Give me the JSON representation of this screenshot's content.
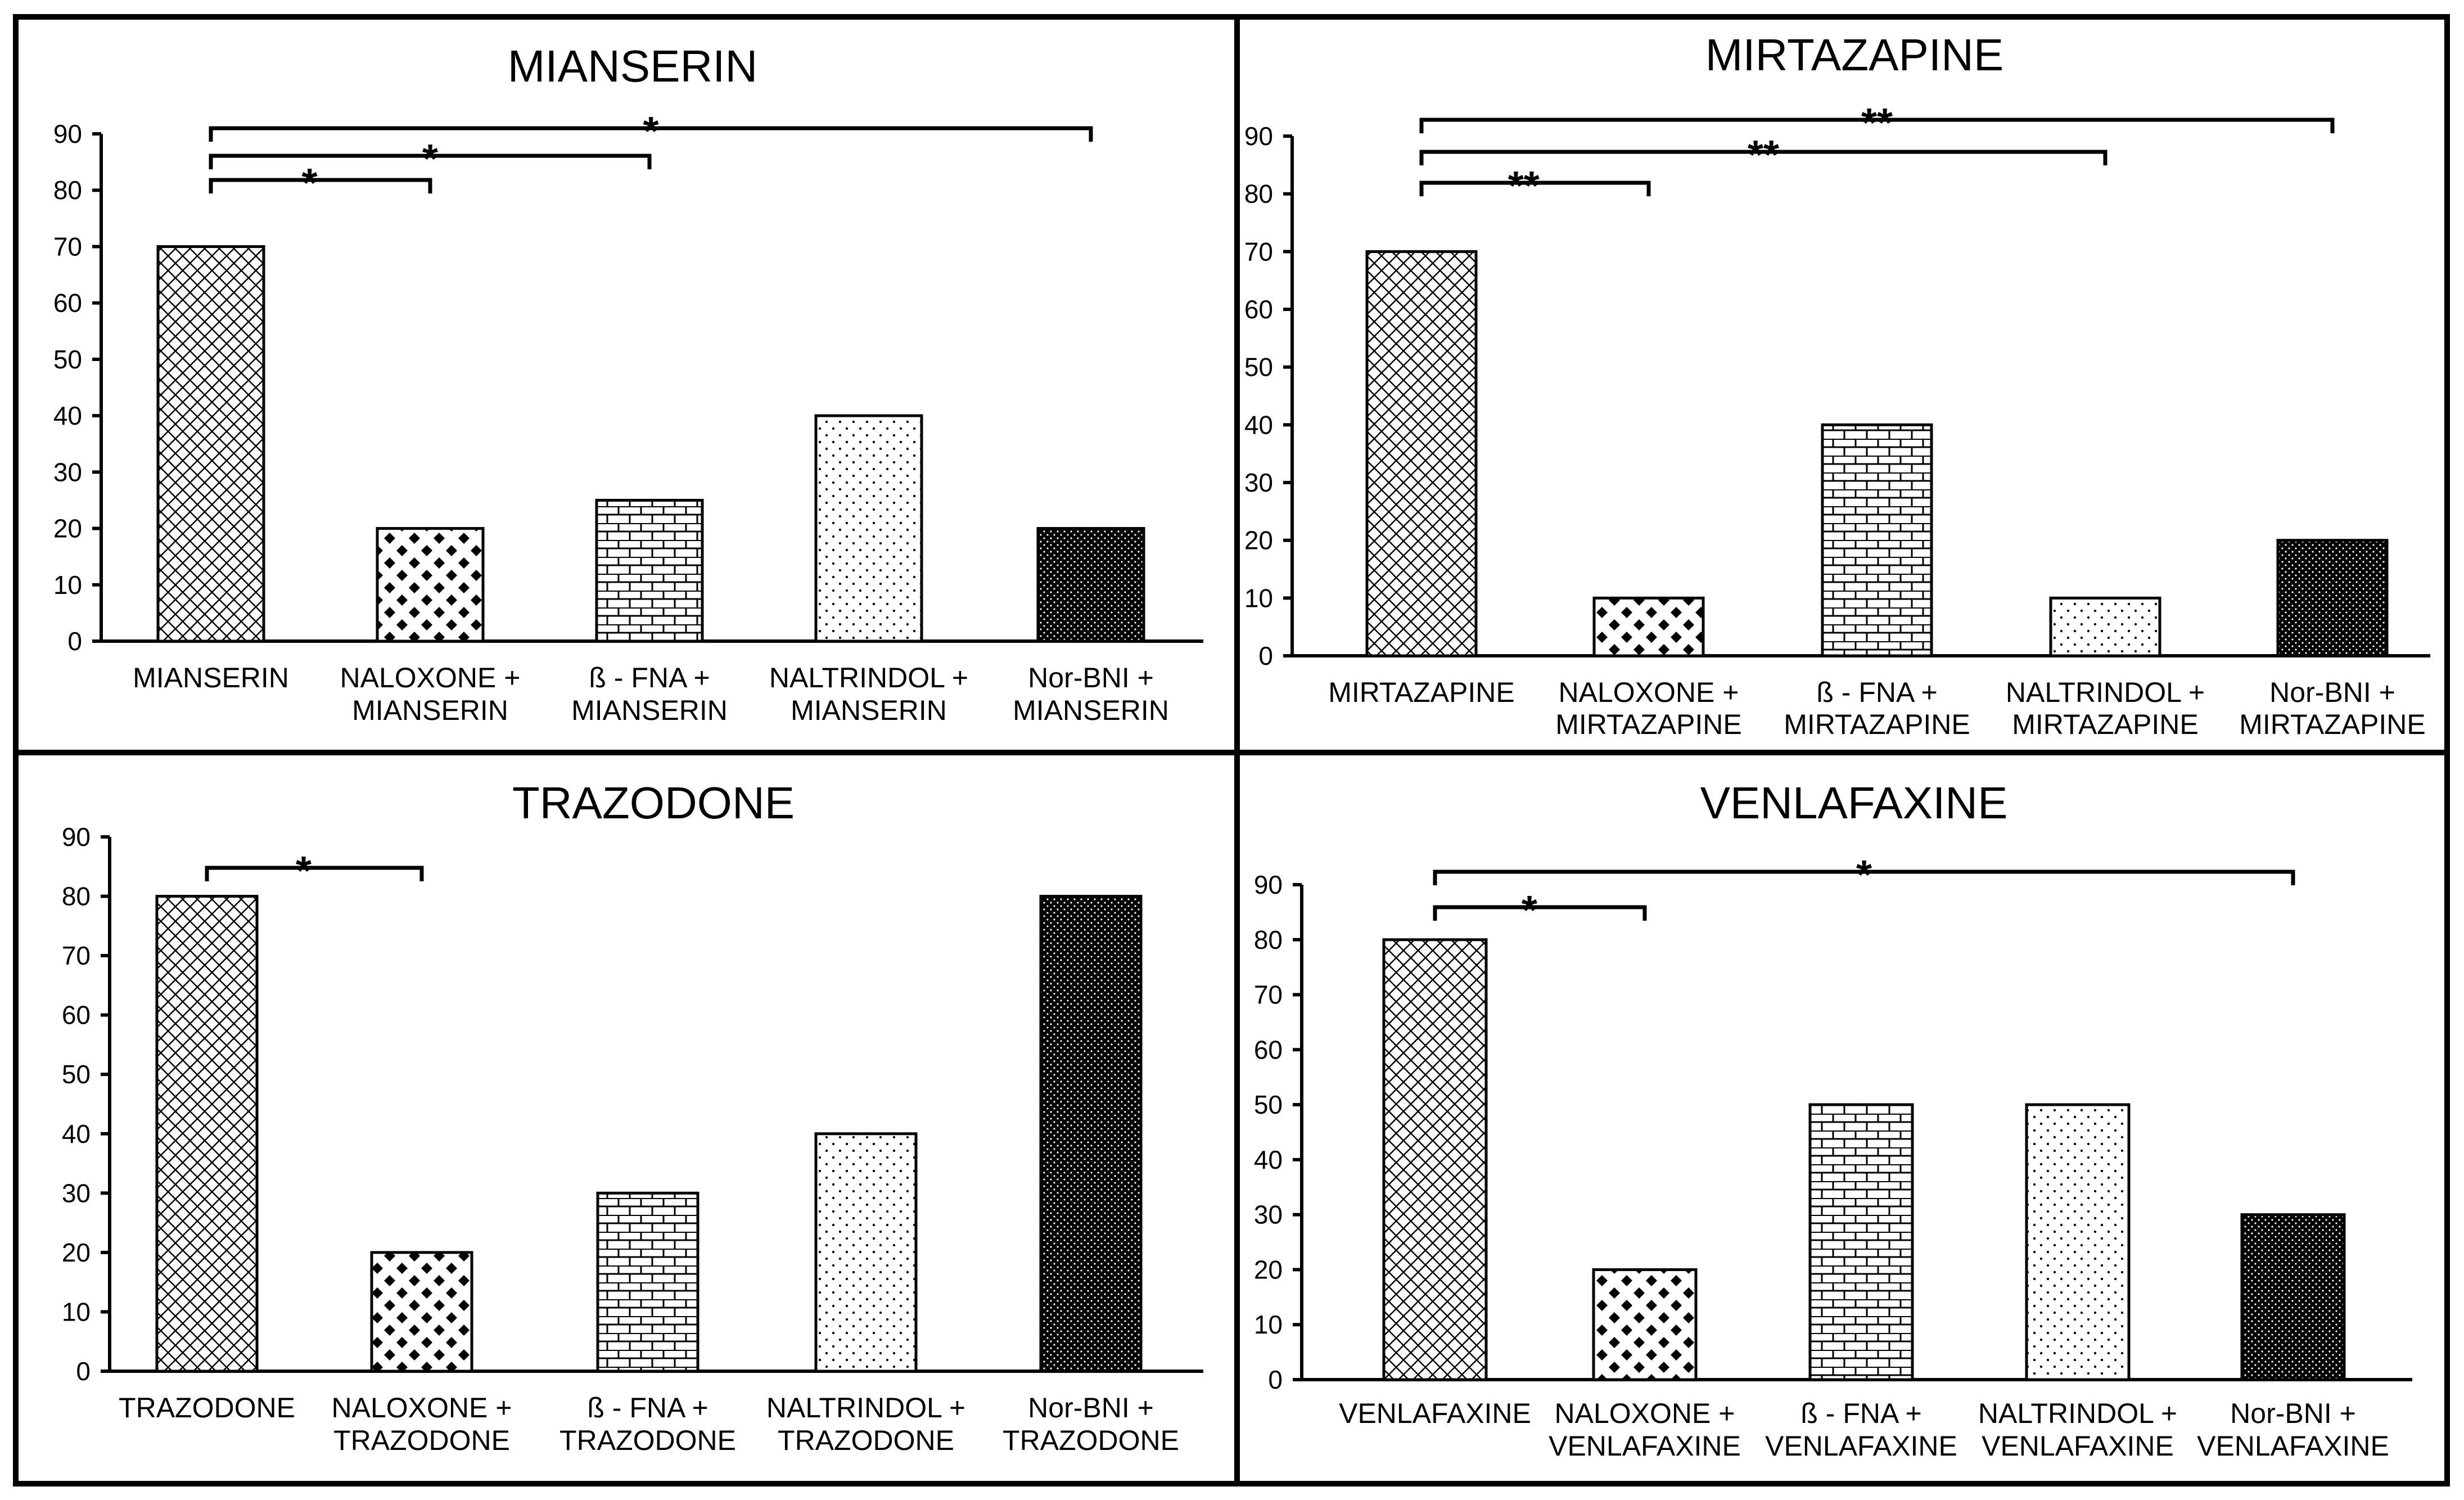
{
  "chart_data": [
    {
      "type": "bar",
      "title": "MIANSERIN",
      "ylim": [
        0,
        90
      ],
      "yticks": [
        0,
        10,
        20,
        30,
        40,
        50,
        60,
        70,
        80,
        90
      ],
      "categories": [
        [
          "MIANSERIN"
        ],
        [
          "NALOXONE +",
          "MIANSERIN"
        ],
        [
          "ß - FNA +",
          "MIANSERIN"
        ],
        [
          "NALTRINDOL +",
          "MIANSERIN"
        ],
        [
          "Nor-BNI +",
          "MIANSERIN"
        ]
      ],
      "values": [
        70,
        20,
        25,
        40,
        20
      ],
      "patterns": [
        "crosshatch",
        "diamonds",
        "bricks",
        "dots",
        "dense"
      ],
      "significance": [
        {
          "from": 0,
          "to": 1,
          "label": "*"
        },
        {
          "from": 0,
          "to": 2,
          "label": "*"
        },
        {
          "from": 0,
          "to": 4,
          "label": "*"
        }
      ]
    },
    {
      "type": "bar",
      "title": "MIRTAZAPINE",
      "ylim": [
        0,
        90
      ],
      "yticks": [
        0,
        10,
        20,
        30,
        40,
        50,
        60,
        70,
        80,
        90
      ],
      "categories": [
        [
          "MIRTAZAPINE"
        ],
        [
          "NALOXONE +",
          "MIRTAZAPINE"
        ],
        [
          "ß - FNA +",
          "MIRTAZAPINE"
        ],
        [
          "NALTRINDOL +",
          "MIRTAZAPINE"
        ],
        [
          "Nor-BNI +",
          "MIRTAZAPINE"
        ]
      ],
      "values": [
        70,
        10,
        40,
        10,
        20
      ],
      "patterns": [
        "crosshatch",
        "diamonds",
        "bricks",
        "dots",
        "dense"
      ],
      "significance": [
        {
          "from": 0,
          "to": 1,
          "label": "**"
        },
        {
          "from": 0,
          "to": 3,
          "label": "**"
        },
        {
          "from": 0,
          "to": 4,
          "label": "**"
        }
      ]
    },
    {
      "type": "bar",
      "title": "TRAZODONE",
      "ylim": [
        0,
        90
      ],
      "yticks": [
        0,
        10,
        20,
        30,
        40,
        50,
        60,
        70,
        80,
        90
      ],
      "categories": [
        [
          "TRAZODONE"
        ],
        [
          "NALOXONE +",
          "TRAZODONE"
        ],
        [
          "ß - FNA +",
          "TRAZODONE"
        ],
        [
          "NALTRINDOL +",
          "TRAZODONE"
        ],
        [
          "Nor-BNI +",
          "TRAZODONE"
        ]
      ],
      "values": [
        80,
        20,
        30,
        40,
        80
      ],
      "patterns": [
        "crosshatch",
        "diamonds",
        "bricks",
        "dots",
        "dense"
      ],
      "significance": [
        {
          "from": 0,
          "to": 1,
          "label": "*"
        }
      ]
    },
    {
      "type": "bar",
      "title": "VENLAFAXINE",
      "ylim": [
        0,
        90
      ],
      "yticks": [
        0,
        10,
        20,
        30,
        40,
        50,
        60,
        70,
        80,
        90
      ],
      "categories": [
        [
          "VENLAFAXINE"
        ],
        [
          "NALOXONE +",
          "VENLAFAXINE"
        ],
        [
          "ß - FNA +",
          "VENLAFAXINE"
        ],
        [
          "NALTRINDOL +",
          "VENLAFAXINE"
        ],
        [
          "Nor-BNI +",
          "VENLAFAXINE"
        ]
      ],
      "values": [
        80,
        20,
        50,
        50,
        30
      ],
      "patterns": [
        "crosshatch",
        "diamonds",
        "bricks",
        "dots",
        "dense"
      ],
      "significance": [
        {
          "from": 0,
          "to": 1,
          "label": "*"
        },
        {
          "from": 0,
          "to": 4,
          "label": "*"
        }
      ]
    }
  ]
}
